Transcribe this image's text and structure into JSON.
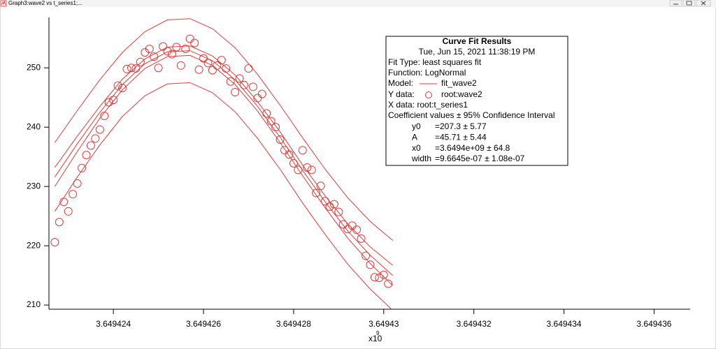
{
  "window": {
    "title": "Graph3:wave2 vs t_series1;..."
  },
  "chart_data": {
    "type": "scatter",
    "x_label": "x10",
    "x_label_exponent": "9",
    "xlim": [
      3.64942257,
      3.6494368
    ],
    "ylim": [
      209.3,
      258.5
    ],
    "xticks": [
      3.649424,
      3.649426,
      3.649428,
      3.64943,
      3.649432,
      3.649434,
      3.649436
    ],
    "yticks": [
      210,
      220,
      230,
      240,
      250
    ],
    "grid": false,
    "series": [
      {
        "name": "root:wave2",
        "type": "scatter",
        "color": "#e03c3c",
        "x": [
          3.6494227,
          3.6494228,
          3.6494229,
          3.649423,
          3.6494231,
          3.6494232,
          3.6494233,
          3.6494234,
          3.6494235,
          3.6494236,
          3.6494237,
          3.6494238,
          3.6494239,
          3.649424,
          3.6494241,
          3.6494242,
          3.6494243,
          3.6494244,
          3.6494245,
          3.6494246,
          3.6494247,
          3.6494248,
          3.6494249,
          3.649425,
          3.6494251,
          3.6494252,
          3.6494253,
          3.6494254,
          3.6494255,
          3.6494256,
          3.6494257,
          3.6494258,
          3.6494259,
          3.649426,
          3.6494261,
          3.6494262,
          3.6494263,
          3.6494264,
          3.6494265,
          3.6494266,
          3.6494267,
          3.6494268,
          3.6494269,
          3.649427,
          3.6494271,
          3.6494272,
          3.6494273,
          3.6494274,
          3.6494275,
          3.6494276,
          3.6494277,
          3.6494278,
          3.6494279,
          3.649428,
          3.6494281,
          3.6494282,
          3.6494283,
          3.6494284,
          3.6494285,
          3.6494286,
          3.6494287,
          3.6494288,
          3.6494289,
          3.649429,
          3.6494291,
          3.6494292,
          3.6494293,
          3.6494294,
          3.6494295,
          3.6494296,
          3.6494297,
          3.6494298,
          3.6494299,
          3.64943,
          3.6494301
        ],
        "values": [
          220.6,
          224.0,
          227.4,
          225.8,
          228.7,
          230.5,
          233.1,
          235.3,
          236.9,
          238.1,
          239.6,
          241.9,
          244.2,
          244.6,
          247.0,
          246.6,
          249.8,
          250.0,
          249.9,
          251.0,
          252.6,
          253.2,
          251.9,
          250.0,
          253.6,
          252.8,
          252.3,
          253.5,
          250.4,
          253.2,
          254.9,
          254.2,
          249.7,
          251.6,
          250.8,
          249.6,
          250.4,
          251.3,
          249.9,
          247.7,
          245.9,
          248.2,
          247.1,
          249.9,
          246.8,
          244.9,
          245.6,
          242.3,
          241.0,
          240.0,
          237.9,
          236.1,
          235.4,
          233.9,
          232.8,
          236.1,
          233.2,
          232.8,
          228.9,
          230.1,
          227.5,
          226.6,
          227.0,
          225.7,
          223.6,
          222.8,
          223.4,
          222.7,
          221.2,
          218.3,
          216.8,
          214.7,
          214.6,
          215.1,
          213.6
        ]
      },
      {
        "name": "fit_wave2",
        "type": "line",
        "color": "#e03c3c",
        "x": [
          3.6494227,
          3.6494232,
          3.6494237,
          3.6494242,
          3.6494247,
          3.6494252,
          3.6494257,
          3.6494262,
          3.6494267,
          3.6494272,
          3.6494277,
          3.6494282,
          3.6494287,
          3.6494292,
          3.6494297,
          3.6494302
        ],
        "values": [
          231.6,
          237.2,
          242.5,
          247.2,
          250.7,
          252.7,
          252.9,
          251.2,
          248.0,
          243.5,
          238.3,
          232.7,
          227.4,
          222.5,
          218.4,
          215.0
        ]
      },
      {
        "type": "line",
        "color": "#e03c3c",
        "x": [
          3.6494227,
          3.6494232,
          3.6494237,
          3.6494242,
          3.6494247,
          3.6494252,
          3.6494257,
          3.6494262,
          3.6494267,
          3.6494272,
          3.6494277,
          3.6494282,
          3.6494287,
          3.6494292,
          3.6494297,
          3.6494302
        ],
        "values": [
          233.2,
          238.5,
          243.5,
          248.1,
          251.5,
          253.5,
          253.7,
          252.0,
          248.8,
          244.3,
          239.2,
          233.6,
          228.4,
          223.7,
          219.8,
          216.7
        ]
      },
      {
        "type": "line",
        "color": "#e03c3c",
        "x": [
          3.6494227,
          3.6494232,
          3.6494237,
          3.6494242,
          3.6494247,
          3.6494252,
          3.6494257,
          3.6494262,
          3.6494267,
          3.6494272,
          3.6494277,
          3.6494282,
          3.6494287,
          3.6494292,
          3.6494297,
          3.6494302
        ],
        "values": [
          230.0,
          235.9,
          241.5,
          246.3,
          249.9,
          251.9,
          252.1,
          250.4,
          247.2,
          242.7,
          237.4,
          231.8,
          226.4,
          221.3,
          217.0,
          213.3
        ]
      },
      {
        "type": "line",
        "color": "#e03c3c",
        "x": [
          3.6494227,
          3.6494232,
          3.6494237,
          3.6494242,
          3.6494247,
          3.6494252,
          3.6494257,
          3.6494262,
          3.6494267,
          3.6494272,
          3.6494277,
          3.6494282,
          3.6494287,
          3.6494292,
          3.6494297,
          3.6494302
        ],
        "values": [
          237.4,
          242.8,
          248.0,
          252.6,
          256.1,
          258.1,
          258.3,
          256.6,
          253.4,
          248.9,
          243.7,
          238.2,
          232.9,
          228.1,
          224.1,
          220.9
        ]
      },
      {
        "type": "line",
        "color": "#e03c3c",
        "x": [
          3.6494227,
          3.6494232,
          3.6494237,
          3.6494242,
          3.6494247,
          3.6494252,
          3.6494257,
          3.6494262,
          3.6494267,
          3.6494272,
          3.6494277,
          3.6494282,
          3.6494287,
          3.6494292,
          3.6494297,
          3.6494302
        ],
        "values": [
          225.8,
          231.6,
          237.0,
          241.8,
          245.3,
          247.3,
          247.5,
          245.8,
          242.6,
          238.1,
          232.9,
          227.2,
          221.9,
          216.9,
          212.7,
          209.1
        ]
      }
    ],
    "annotation": {
      "title": "Curve Fit Results",
      "timestamp": "Tue, Jun 15, 2021 11:38:19 PM",
      "fit_type": "Fit Type: least squares fit",
      "function": "Function: LogNormal",
      "model_label": "Model:",
      "y_data_label": "Y data:",
      "x_data": "X data: root:t_series1",
      "coef_header": "Coefficient values ± 95% Confidence Interval",
      "coefficients": [
        {
          "name": "y0",
          "value": "=207.3 ± 5.77"
        },
        {
          "name": "A",
          "value": "=45.71 ± 5.44"
        },
        {
          "name": "x0",
          "value": "=3.6494e+09 ± 64.8"
        },
        {
          "name": "width",
          "value": "=9.6645e-07 ± 1.08e-07"
        }
      ]
    }
  }
}
